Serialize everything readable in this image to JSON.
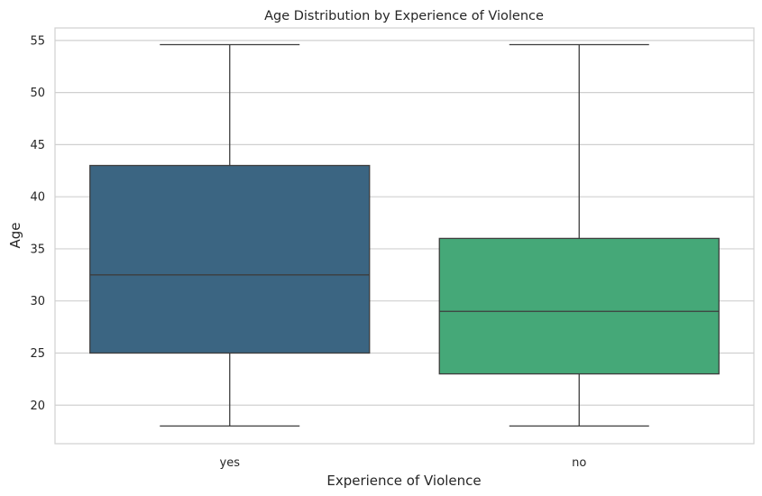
{
  "chart_data": {
    "type": "boxplot",
    "title": "Age Distribution by Experience of Violence",
    "xlabel": "Experience of Violence",
    "ylabel": "Age",
    "ylim": [
      16.3,
      56.2
    ],
    "yticks": [
      20,
      25,
      30,
      35,
      40,
      45,
      50,
      55
    ],
    "grid": "horizontal",
    "categories": [
      "yes",
      "no"
    ],
    "boxes": [
      {
        "category": "yes",
        "whisker_low": 18,
        "q1": 25,
        "median": 32.5,
        "q3": 43,
        "whisker_high": 54.6,
        "color": "#3b6582"
      },
      {
        "category": "no",
        "whisker_low": 18,
        "q1": 23,
        "median": 29,
        "q3": 36,
        "whisker_high": 54.6,
        "color": "#45a878"
      }
    ]
  }
}
